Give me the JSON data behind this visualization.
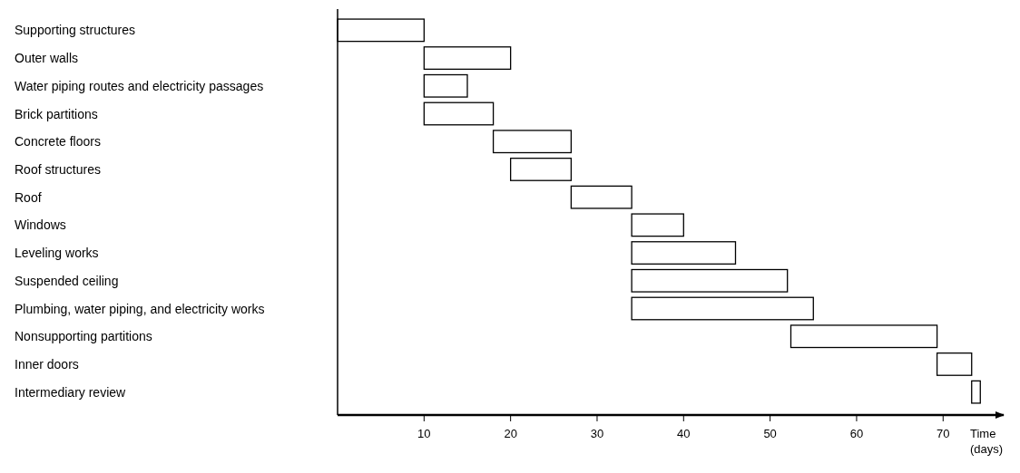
{
  "chart_data": {
    "type": "bar",
    "orientation": "horizontal",
    "xlabel": "Time\n(days)",
    "categories": [
      "Supporting structures",
      "Outer walls",
      "Water piping routes and electricity passages",
      "Brick partitions",
      "Concrete floors",
      "Roof structures",
      "Roof",
      "Windows",
      "Leveling works",
      "Suspended ceiling",
      "Plumbing, water piping, and electricity works",
      "Nonsupporting partitions",
      "Inner doors",
      "Intermediary review"
    ],
    "base": [
      0,
      10,
      10,
      10,
      18,
      20,
      27,
      34,
      34,
      34,
      34,
      52.4,
      69.3,
      73.3
    ],
    "values": [
      10,
      10,
      5,
      8,
      9,
      7,
      7,
      6,
      12,
      18,
      21,
      16.9,
      4,
      1
    ],
    "color": "#ffffff",
    "xlim": [
      0,
      77
    ],
    "xticks": [
      10,
      20,
      30,
      40,
      50,
      60,
      70
    ],
    "grid": false
  }
}
